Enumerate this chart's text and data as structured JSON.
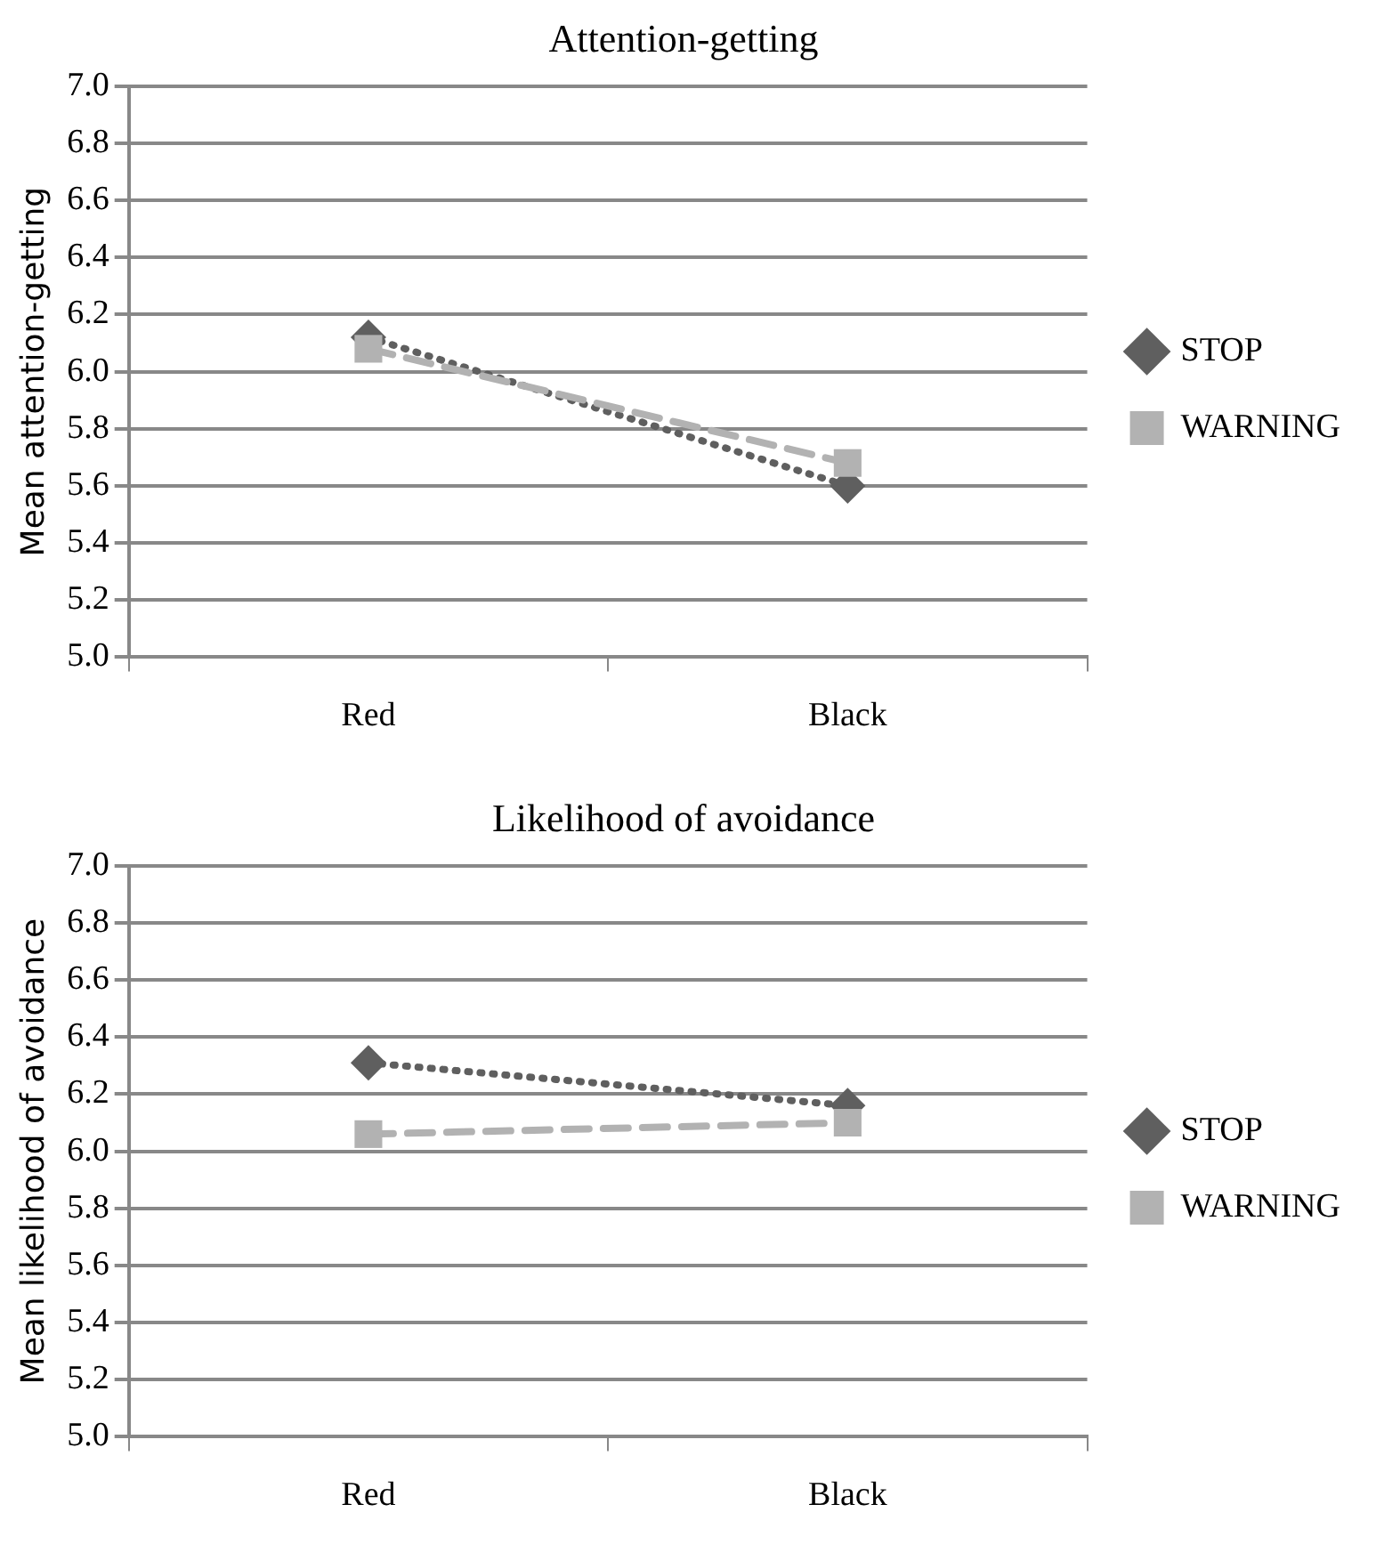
{
  "chart_data": [
    {
      "type": "line",
      "title": "Attention-getting",
      "ylabel": "Mean attention-getting",
      "categories": [
        "Red",
        "Black"
      ],
      "series": [
        {
          "name": "STOP",
          "color": "#5f5f5f",
          "values": [
            6.12,
            5.6
          ],
          "marker": "diamond",
          "line_style": "dotted"
        },
        {
          "name": "WARNING",
          "color": "#b2b2b2",
          "values": [
            6.08,
            5.68
          ],
          "marker": "square",
          "line_style": "dashed"
        }
      ],
      "ylim": [
        5.0,
        7.0
      ],
      "yticks": [
        {
          "value": 5.0,
          "label": "5.0"
        },
        {
          "value": 5.2,
          "label": "5.2"
        },
        {
          "value": 5.4,
          "label": "5.4"
        },
        {
          "value": 5.6,
          "label": "5.6"
        },
        {
          "value": 5.8,
          "label": "5.8"
        },
        {
          "value": 6.0,
          "label": "6.0"
        },
        {
          "value": 6.2,
          "label": "6.2"
        },
        {
          "value": 6.4,
          "label": "6.4"
        },
        {
          "value": 6.6,
          "label": "6.6"
        },
        {
          "value": 6.8,
          "label": "6.8"
        },
        {
          "value": 7.0,
          "label": "7.0"
        }
      ],
      "grid": "y",
      "legend": "right"
    },
    {
      "type": "line",
      "title": "Likelihood of avoidance",
      "ylabel": "Mean likelihood of avoidance",
      "categories": [
        "Red",
        "Black"
      ],
      "series": [
        {
          "name": "STOP",
          "color": "#5f5f5f",
          "values": [
            6.31,
            6.16
          ],
          "marker": "diamond",
          "line_style": "dotted"
        },
        {
          "name": "WARNING",
          "color": "#b2b2b2",
          "values": [
            6.06,
            6.1
          ],
          "marker": "square",
          "line_style": "dashed"
        }
      ],
      "ylim": [
        5.0,
        7.0
      ],
      "yticks": [
        {
          "value": 5.0,
          "label": "5.0"
        },
        {
          "value": 5.2,
          "label": "5.2"
        },
        {
          "value": 5.4,
          "label": "5.4"
        },
        {
          "value": 5.6,
          "label": "5.6"
        },
        {
          "value": 5.8,
          "label": "5.8"
        },
        {
          "value": 6.0,
          "label": "6.0"
        },
        {
          "value": 6.2,
          "label": "6.2"
        },
        {
          "value": 6.4,
          "label": "6.4"
        },
        {
          "value": 6.6,
          "label": "6.6"
        },
        {
          "value": 6.8,
          "label": "6.8"
        },
        {
          "value": 7.0,
          "label": "7.0"
        }
      ],
      "grid": "y",
      "legend": "right"
    }
  ]
}
